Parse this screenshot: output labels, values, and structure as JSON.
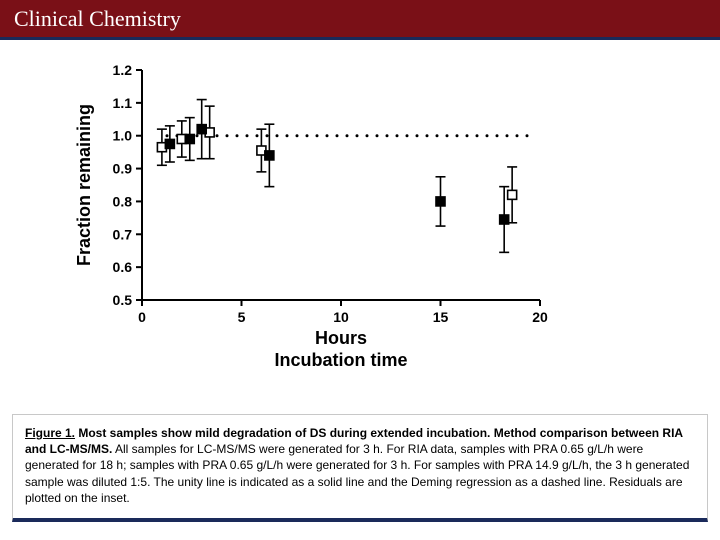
{
  "header": {
    "title": "Clinical Chemistry"
  },
  "chart": {
    "type": "scatter-error",
    "xlabel_top": "Hours",
    "xlabel_bottom": "Incubation time",
    "ylabel": "Fraction remaining",
    "label_fontsize": 18,
    "tick_fontsize": 14,
    "xlim": [
      0,
      20
    ],
    "ylim": [
      0.5,
      1.2
    ],
    "xticks": [
      0,
      5,
      10,
      15,
      20
    ],
    "yticks": [
      0.5,
      0.6,
      0.7,
      0.8,
      0.9,
      1.0,
      1.1,
      1.2
    ],
    "axis_color": "#000000",
    "background_color": "#ffffff",
    "unity_line_y": 1.0,
    "unity_line_style": "dotted",
    "series": [
      {
        "name": "open-squares",
        "marker": "square-open",
        "color": "#000000",
        "fill": "#ffffff",
        "size": 9,
        "points": [
          {
            "x": 1.0,
            "y": 0.965,
            "err": 0.055
          },
          {
            "x": 2.0,
            "y": 0.99,
            "err": 0.055
          },
          {
            "x": 3.4,
            "y": 1.01,
            "err": 0.08
          },
          {
            "x": 6.0,
            "y": 0.955,
            "err": 0.065
          },
          {
            "x": 18.6,
            "y": 0.82,
            "err": 0.085
          }
        ]
      },
      {
        "name": "filled-squares",
        "marker": "square-filled",
        "color": "#000000",
        "fill": "#000000",
        "size": 9,
        "points": [
          {
            "x": 1.4,
            "y": 0.975,
            "err": 0.055
          },
          {
            "x": 2.4,
            "y": 0.99,
            "err": 0.065
          },
          {
            "x": 3.0,
            "y": 1.02,
            "err": 0.09
          },
          {
            "x": 6.4,
            "y": 0.94,
            "err": 0.095
          },
          {
            "x": 15.0,
            "y": 0.8,
            "err": 0.075
          },
          {
            "x": 18.2,
            "y": 0.745,
            "err": 0.1
          }
        ]
      }
    ]
  },
  "caption": {
    "lead": "Figure 1.",
    "bold": " Most samples show mild degradation of DS during extended incubation. Method comparison between RIA and LC-MS/MS.",
    "rest": " All samples for LC-MS/MS were generated for 3 h. For RIA data, samples with PRA 0.65 g/L/h were generated for 18 h; samples with PRA 0.65 g/L/h were generated for 3 h. For samples with PRA 14.9 g/L/h, the 3 h generated sample was diluted 1:5. The unity line is indicated as a solid line and the Deming regression as a dashed line. Residuals are plotted on the inset."
  }
}
